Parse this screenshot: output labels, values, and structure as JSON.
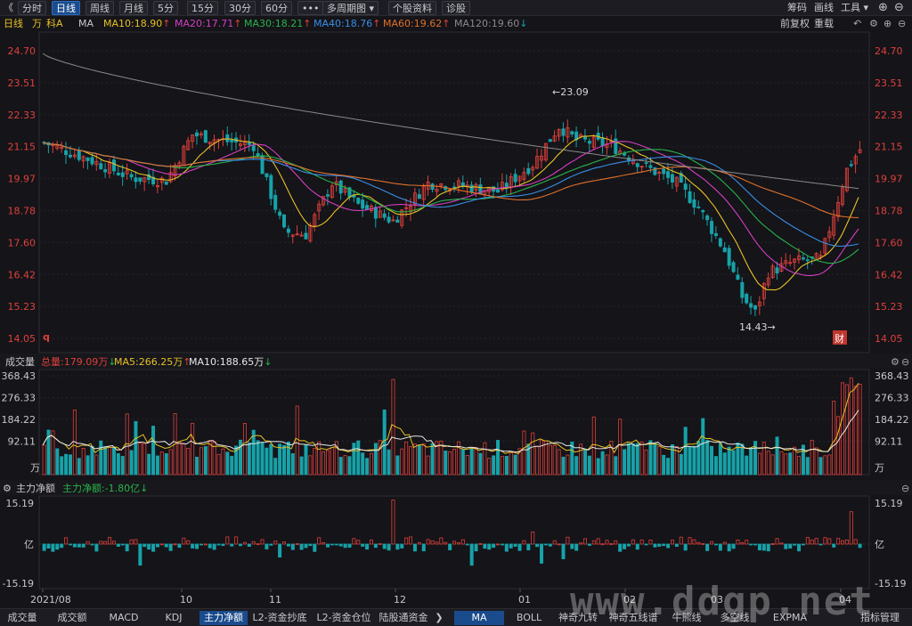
{
  "toolbar": {
    "nav_back": "《",
    "tabs": [
      "分时",
      "日线",
      "周线",
      "月线",
      "5分",
      "15分",
      "30分",
      "60分",
      "•••",
      "多周期图 ▾",
      "个股资料",
      "诊股"
    ],
    "right": [
      "筹码",
      "画线",
      "工具 ▾"
    ]
  },
  "infobar": {
    "period": "日线",
    "unit": "万",
    "ticker": "科A",
    "indicator": "MA",
    "ma10": "MA10:18.90",
    "ma20": "MA20:17.71",
    "ma30": "MA30:18.21",
    "ma40": "MA40:18.76",
    "ma60": "MA60:19.62",
    "ma120": "MA120:19.60",
    "qfq": "前复权",
    "overlay": "重载"
  },
  "price_chart": {
    "y_ticks": [
      "24.70",
      "23.51",
      "22.33",
      "21.15",
      "19.97",
      "18.78",
      "17.60",
      "16.42",
      "15.23",
      "14.05"
    ],
    "high_label": "←23.09",
    "low_label": "14.43→",
    "left_mark": "q",
    "cai_badge": "财"
  },
  "volume_chart": {
    "title": "成交量",
    "total": "总量:179.09万",
    "ma5": "MA5:266.25万",
    "ma10": "MA10:188.65万",
    "y_ticks": [
      "368.43",
      "276.33",
      "184.22",
      "92.11"
    ],
    "unit": "万"
  },
  "flow_chart": {
    "title": "主力净额",
    "value": "主力净额:-1.80亿",
    "y_top": "15.19",
    "y_mid": "亿",
    "y_bottom": "-15.19"
  },
  "x_axis": [
    "2021/08",
    "10",
    "11",
    "12",
    "01",
    "02",
    "03",
    "04"
  ],
  "bottombar": {
    "left_tabs": [
      "成交量",
      "成交额",
      "MACD",
      "KDJ",
      "主力净额",
      "L2-资金抄底",
      "L2-资金仓位",
      "陆股通资金"
    ],
    "right_tabs": [
      "MA",
      "BOLL",
      "神奇九转",
      "神奇五线谱",
      "牛熊线",
      "多空线",
      "EXPMA",
      "指标管理"
    ]
  },
  "watermark": "www.ddgp.net",
  "colors": {
    "up": "#e0403a",
    "down": "#17a2a8",
    "ma_yellow": "#e8c024",
    "ma_magenta": "#d43fc0",
    "ma_green": "#28b44a",
    "ma_blue": "#3a8ee6",
    "ma_orange": "#e0702a",
    "ma_gray": "#8a8a8a"
  }
}
